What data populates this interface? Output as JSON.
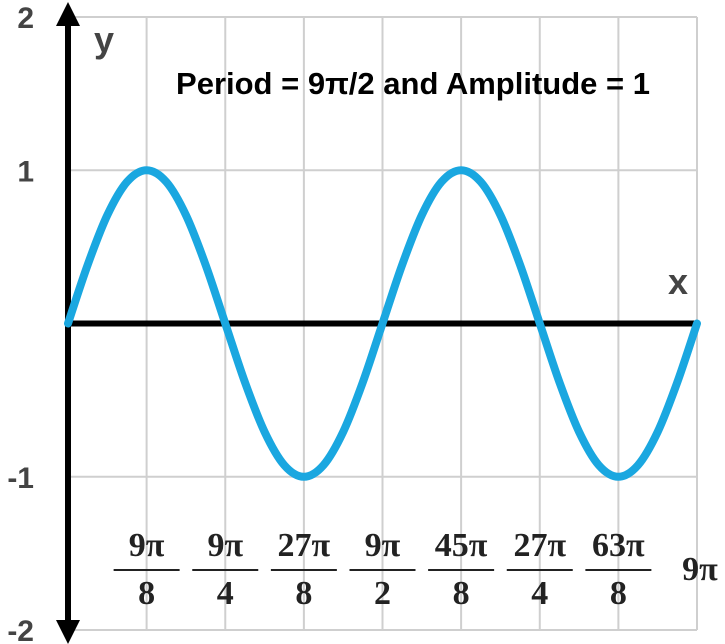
{
  "chart_data": {
    "type": "line",
    "title": "Period = 9π/2 and Amplitude = 1",
    "xlabel": "x",
    "ylabel": "y",
    "xlim": [
      0,
      28.274
    ],
    "ylim": [
      -2,
      2
    ],
    "xticks": [
      {
        "value": 3.534,
        "label": [
          "9π",
          "8"
        ]
      },
      {
        "value": 7.069,
        "label": [
          "9π",
          "4"
        ]
      },
      {
        "value": 10.603,
        "label": [
          "27π",
          "8"
        ]
      },
      {
        "value": 14.137,
        "label": [
          "9π",
          "2"
        ]
      },
      {
        "value": 17.671,
        "label": [
          "45π",
          "8"
        ]
      },
      {
        "value": 21.206,
        "label": [
          "27π",
          "4"
        ]
      },
      {
        "value": 24.74,
        "label": [
          "63π",
          "8"
        ]
      },
      {
        "value": 28.274,
        "label": "9π"
      }
    ],
    "yticks": [
      -2,
      -1,
      1,
      2
    ],
    "grid": true,
    "x": [
      0,
      0.884,
      1.767,
      2.651,
      3.534,
      4.418,
      5.301,
      6.185,
      7.069,
      7.952,
      8.836,
      9.719,
      10.603,
      11.486,
      12.37,
      13.254,
      14.137,
      15.021,
      15.904,
      16.788,
      17.671,
      18.555,
      19.438,
      20.322,
      21.206,
      22.089,
      22.973,
      23.856,
      24.74,
      25.623,
      26.507,
      27.39,
      28.274
    ],
    "series": [
      {
        "color": "#1aa7e0",
        "values": [
          0,
          0.3827,
          0.7071,
          0.9239,
          1,
          0.9239,
          0.7071,
          0.3827,
          0,
          -0.3827,
          -0.7071,
          -0.9239,
          -1,
          -0.9239,
          -0.7071,
          -0.3827,
          0,
          0.3827,
          0.7071,
          0.9239,
          1,
          0.9239,
          0.7071,
          0.3827,
          0,
          -0.3827,
          -0.7071,
          -0.9239,
          -1,
          -0.9239,
          -0.7071,
          -0.3827,
          0
        ]
      }
    ]
  }
}
